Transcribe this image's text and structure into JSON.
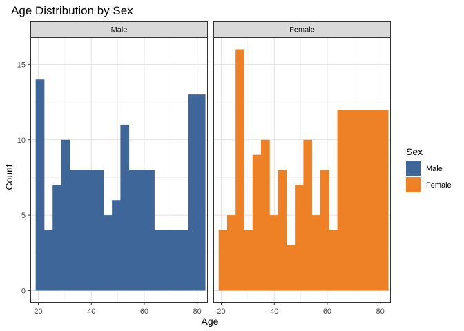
{
  "chart_data": {
    "type": "bar",
    "subtype": "faceted-histogram",
    "title": "Age Distribution by Sex",
    "xlabel": "Age",
    "ylabel": "Count",
    "xlim": [
      17,
      84
    ],
    "ylim": [
      -0.8,
      16.8
    ],
    "x_ticks": [
      20,
      40,
      60,
      80
    ],
    "y_ticks": [
      0,
      5,
      10,
      15
    ],
    "grid": true,
    "bin_edges": [
      19,
      22.2,
      25.4,
      28.6,
      31.8,
      35,
      38.2,
      41.4,
      44.6,
      47.8,
      51,
      54.2,
      57.4,
      60.6,
      63.8,
      67,
      70.2,
      73.4,
      76.6,
      79.8,
      83
    ],
    "legend": {
      "title": "Sex",
      "position": "right",
      "entries": [
        {
          "label": "Male",
          "color": "#3f6699"
        },
        {
          "label": "Female",
          "color": "#ee8026"
        }
      ]
    },
    "facets": [
      {
        "label": "Male",
        "color": "#3f6699",
        "values": [
          14,
          4,
          7,
          10,
          8,
          8,
          8,
          8,
          5,
          6,
          11,
          8,
          8,
          8,
          4,
          4,
          4,
          4,
          13,
          13
        ]
      },
      {
        "label": "Female",
        "color": "#ee8026",
        "values": [
          4,
          5,
          16,
          4,
          9,
          10,
          5,
          8,
          3,
          7,
          10,
          5,
          8,
          4,
          12,
          12,
          12,
          12,
          12,
          12
        ]
      }
    ]
  }
}
